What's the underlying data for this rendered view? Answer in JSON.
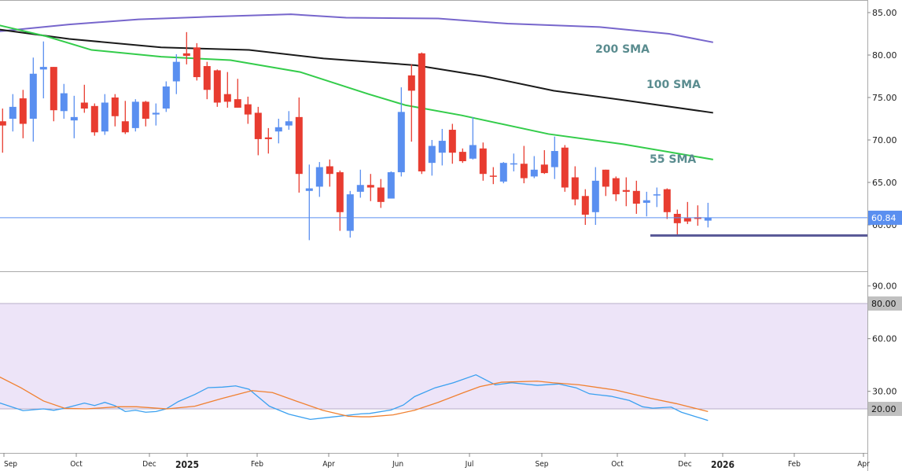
{
  "chart_data": {
    "type": "candlestick",
    "colors": {
      "up": "#5a8ff0",
      "down": "#e83c30",
      "sma200": "#7766cc",
      "sma100": "#1a1a1a",
      "sma55": "#33cc4a",
      "oscillator_fast": "#3aa0f0",
      "oscillator_slow": "#f08030",
      "band_fill": "#ede4f8",
      "support_line": "#5a5a98",
      "price_tag": "#5a8ff0",
      "label_tag": "#c0c0c0"
    },
    "x_ticks": [
      "Sep",
      "Oct",
      "Dec",
      "2025",
      "Feb",
      "Apr",
      "Jun",
      "Jul",
      "Sep",
      "Oct",
      "Dec",
      "2026",
      "Feb",
      "Apr"
    ],
    "price_panel": {
      "ylim": [
        56,
        86.5
      ],
      "y_ticks": [
        "85.00",
        "80.00",
        "75.00",
        "70.00",
        "65.00",
        "60.00"
      ],
      "last_price": 60.84,
      "last_price_label": "60.84",
      "support_level": 58.75,
      "candles_ohlc": [
        [
          72.2,
          73.7,
          68.5,
          71.7
        ],
        [
          72.5,
          75.4,
          71.0,
          73.9
        ],
        [
          74.9,
          75.9,
          70.2,
          71.9
        ],
        [
          72.5,
          79.7,
          69.8,
          77.8
        ],
        [
          78.3,
          81.6,
          74.9,
          78.6
        ],
        [
          78.6,
          78.6,
          72.2,
          73.5
        ],
        [
          73.4,
          76.6,
          72.5,
          75.5
        ],
        [
          72.3,
          75.2,
          70.2,
          72.7
        ],
        [
          74.4,
          76.5,
          73.2,
          73.7
        ],
        [
          74.0,
          74.3,
          70.5,
          70.9
        ],
        [
          71.0,
          75.4,
          70.6,
          74.4
        ],
        [
          75.0,
          75.4,
          71.6,
          72.8
        ],
        [
          72.2,
          74.6,
          70.7,
          70.9
        ],
        [
          71.4,
          74.8,
          71.0,
          74.5
        ],
        [
          74.5,
          74.6,
          71.6,
          72.5
        ],
        [
          73.0,
          74.3,
          71.7,
          73.2
        ],
        [
          73.7,
          76.9,
          73.3,
          76.3
        ],
        [
          76.9,
          80.1,
          75.4,
          79.2
        ],
        [
          80.2,
          82.7,
          78.9,
          79.9
        ],
        [
          80.9,
          81.4,
          77.0,
          77.4
        ],
        [
          78.7,
          79.2,
          74.8,
          75.9
        ],
        [
          78.2,
          78.3,
          73.9,
          74.4
        ],
        [
          75.4,
          78.0,
          73.8,
          74.5
        ],
        [
          74.8,
          77.2,
          73.8,
          73.8
        ],
        [
          74.2,
          75.1,
          71.9,
          73.0
        ],
        [
          73.2,
          73.9,
          68.2,
          70.1
        ],
        [
          70.3,
          71.4,
          68.4,
          70.1
        ],
        [
          71.0,
          72.5,
          69.6,
          71.5
        ],
        [
          71.7,
          73.4,
          71.2,
          72.2
        ],
        [
          72.7,
          75.0,
          63.8,
          66.0
        ],
        [
          64.0,
          67.1,
          58.2,
          64.3
        ],
        [
          64.5,
          67.4,
          63.3,
          66.8
        ],
        [
          66.9,
          67.7,
          64.5,
          66.0
        ],
        [
          66.2,
          66.4,
          59.3,
          61.5
        ],
        [
          59.3,
          64.0,
          58.5,
          63.6
        ],
        [
          63.9,
          66.5,
          63.2,
          64.7
        ],
        [
          64.7,
          66.0,
          62.8,
          64.4
        ],
        [
          64.4,
          65.4,
          62.0,
          62.7
        ],
        [
          63.1,
          66.3,
          63.1,
          66.2
        ],
        [
          66.2,
          76.2,
          65.7,
          73.3
        ],
        [
          77.6,
          78.9,
          69.8,
          75.8
        ],
        [
          80.2,
          80.3,
          66.0,
          66.3
        ],
        [
          67.3,
          70.0,
          65.8,
          69.3
        ],
        [
          68.5,
          71.3,
          67.0,
          69.9
        ],
        [
          71.2,
          71.9,
          67.2,
          68.5
        ],
        [
          68.6,
          69.0,
          67.3,
          67.5
        ],
        [
          67.8,
          72.7,
          67.7,
          69.4
        ],
        [
          69.0,
          69.7,
          65.2,
          66.0
        ],
        [
          65.8,
          66.8,
          64.8,
          65.7
        ],
        [
          65.1,
          67.4,
          64.9,
          67.3
        ],
        [
          67.15,
          68.4,
          66.3,
          67.25
        ],
        [
          67.2,
          69.3,
          64.9,
          65.5
        ],
        [
          65.7,
          68.1,
          65.5,
          66.5
        ],
        [
          67.1,
          68.8,
          66.0,
          66.1
        ],
        [
          66.8,
          70.4,
          65.4,
          68.7
        ],
        [
          69.1,
          69.4,
          63.9,
          64.4
        ],
        [
          65.6,
          66.9,
          62.3,
          63.0
        ],
        [
          63.4,
          64.2,
          60.0,
          61.2
        ],
        [
          61.5,
          66.8,
          60.0,
          65.2
        ],
        [
          66.5,
          66.5,
          63.4,
          64.5
        ],
        [
          65.5,
          65.7,
          62.8,
          63.6
        ],
        [
          64.1,
          65.6,
          62.2,
          63.9
        ],
        [
          64.0,
          65.2,
          61.3,
          62.5
        ],
        [
          62.6,
          63.9,
          61.0,
          62.9
        ],
        [
          63.55,
          64.4,
          62.1,
          63.6
        ],
        [
          64.2,
          64.3,
          60.7,
          61.5
        ],
        [
          61.3,
          61.8,
          58.7,
          60.2
        ],
        [
          60.8,
          62.7,
          60.1,
          60.4
        ],
        [
          60.9,
          62.3,
          59.9,
          60.7
        ],
        [
          60.5,
          62.6,
          59.7,
          60.84
        ]
      ],
      "moving_averages": [
        {
          "name": "200 SMA",
          "points": [
            [
              -0.3,
              82.8
            ],
            [
              6.5,
              83.6
            ],
            [
              13.3,
              84.2
            ],
            [
              20,
              84.5
            ],
            [
              28.2,
              84.8
            ],
            [
              33.6,
              84.4
            ],
            [
              42.6,
              84.3
            ],
            [
              49.4,
              83.7
            ],
            [
              58.4,
              83.3
            ],
            [
              65.2,
              82.5
            ],
            [
              69.5,
              81.5
            ]
          ]
        },
        {
          "name": "100 SMA",
          "points": [
            [
              -0.3,
              83.0
            ],
            [
              6.5,
              81.9
            ],
            [
              15.5,
              80.9
            ],
            [
              24.1,
              80.6
            ],
            [
              31.4,
              79.6
            ],
            [
              40.4,
              78.8
            ],
            [
              47.1,
              77.5
            ],
            [
              53.9,
              75.8
            ],
            [
              60.7,
              74.7
            ],
            [
              69.5,
              73.2
            ]
          ]
        },
        {
          "name": "55 SMA",
          "points": [
            [
              -0.3,
              83.5
            ],
            [
              4.3,
              82.2
            ],
            [
              8.7,
              80.6
            ],
            [
              15.5,
              79.8
            ],
            [
              22.3,
              79.4
            ],
            [
              29.1,
              78.0
            ],
            [
              35.8,
              75.4
            ],
            [
              39.4,
              74.1
            ],
            [
              44.9,
              72.9
            ],
            [
              53.4,
              70.7
            ],
            [
              60.7,
              69.5
            ],
            [
              69.5,
              67.7
            ]
          ]
        }
      ]
    },
    "oscillator_panel": {
      "y_ticks": [
        "90.00",
        "60.00",
        "30.00"
      ],
      "band": [
        20,
        80
      ],
      "band_labels": [
        "80.00",
        "20.00"
      ],
      "series": [
        {
          "points": [
            [
              -0.3,
              23.4
            ],
            [
              2,
              19.0
            ],
            [
              4,
              20.0
            ],
            [
              5,
              19.2
            ],
            [
              6,
              20.3
            ],
            [
              8,
              23.3
            ],
            [
              9,
              21.9
            ],
            [
              10,
              23.7
            ],
            [
              11,
              21.8
            ],
            [
              12,
              18.5
            ],
            [
              13,
              19.2
            ],
            [
              14,
              18.1
            ],
            [
              15,
              18.5
            ],
            [
              16,
              20.0
            ],
            [
              17.2,
              24.2
            ],
            [
              18.8,
              28.2
            ],
            [
              20.1,
              32.1
            ],
            [
              21.5,
              32.4
            ],
            [
              22.8,
              33.1
            ],
            [
              24.1,
              31.2
            ],
            [
              26.1,
              21.5
            ],
            [
              28,
              17.0
            ],
            [
              30.1,
              14.0
            ],
            [
              31.8,
              15.1
            ],
            [
              35.1,
              17.2
            ],
            [
              35.9,
              17.4
            ],
            [
              38,
              19.4
            ],
            [
              39.2,
              22.2
            ],
            [
              40.3,
              27.0
            ],
            [
              42.3,
              32.0
            ],
            [
              44.1,
              34.9
            ],
            [
              46.3,
              39.4
            ],
            [
              48.2,
              33.7
            ],
            [
              49.8,
              34.9
            ],
            [
              52.3,
              33.4
            ],
            [
              54.4,
              34.2
            ],
            [
              56.1,
              32.0
            ],
            [
              57.4,
              28.6
            ],
            [
              59.5,
              27.2
            ],
            [
              61.3,
              24.8
            ],
            [
              62.6,
              21.2
            ],
            [
              63.6,
              20.4
            ],
            [
              65.4,
              21.0
            ],
            [
              66.4,
              18.1
            ],
            [
              69,
              13.4
            ]
          ]
        },
        {
          "points": [
            [
              -0.3,
              38.2
            ],
            [
              1.8,
              32.0
            ],
            [
              4,
              24.5
            ],
            [
              6.1,
              20.3
            ],
            [
              8.2,
              20.0
            ],
            [
              11.3,
              21.2
            ],
            [
              13.1,
              21.2
            ],
            [
              16.1,
              20.0
            ],
            [
              18.8,
              21.5
            ],
            [
              21.5,
              26.0
            ],
            [
              24.4,
              30.4
            ],
            [
              26.4,
              29.3
            ],
            [
              28.7,
              24.5
            ],
            [
              31.3,
              19.2
            ],
            [
              33.8,
              15.8
            ],
            [
              35.1,
              15.5
            ],
            [
              35.9,
              15.5
            ],
            [
              38.2,
              16.6
            ],
            [
              40.3,
              19.2
            ],
            [
              42.6,
              23.7
            ],
            [
              45.1,
              29.3
            ],
            [
              46.7,
              32.7
            ],
            [
              48.8,
              35.2
            ],
            [
              52.3,
              35.8
            ],
            [
              53.8,
              34.9
            ],
            [
              56.4,
              33.7
            ],
            [
              60,
              30.7
            ],
            [
              63.4,
              26.0
            ],
            [
              65.9,
              23.0
            ],
            [
              69,
              18.5
            ]
          ]
        }
      ]
    }
  }
}
